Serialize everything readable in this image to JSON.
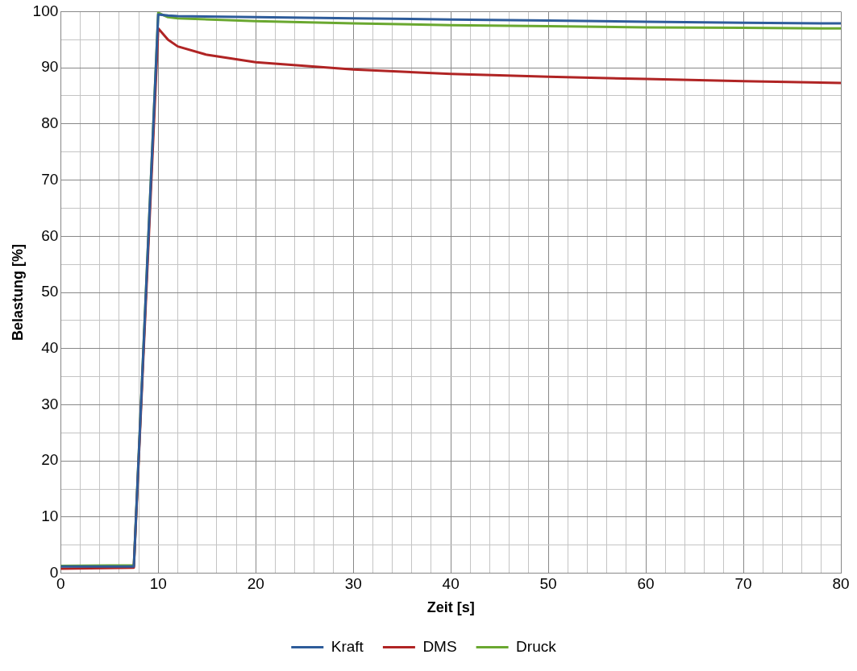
{
  "chart_data": {
    "type": "line",
    "xlabel": "Zeit [s]",
    "ylabel": "Belastung [%]",
    "xlim": [
      0,
      80
    ],
    "ylim": [
      0,
      100
    ],
    "xticks": [
      0,
      {
        "value": 2,
        "label": null
      },
      {
        "value": 4,
        "label": null
      },
      {
        "value": 6,
        "label": null
      },
      {
        "value": 8,
        "label": null
      },
      10,
      {
        "value": 12,
        "label": null
      },
      {
        "value": 14,
        "label": null
      },
      {
        "value": 16,
        "label": null
      },
      {
        "value": 18,
        "label": null
      },
      20,
      {
        "value": 22,
        "label": null
      },
      {
        "value": 24,
        "label": null
      },
      {
        "value": 26,
        "label": null
      },
      {
        "value": 28,
        "label": null
      },
      30,
      {
        "value": 32,
        "label": null
      },
      {
        "value": 34,
        "label": null
      },
      {
        "value": 36,
        "label": null
      },
      {
        "value": 38,
        "label": null
      },
      40,
      {
        "value": 42,
        "label": null
      },
      {
        "value": 44,
        "label": null
      },
      {
        "value": 46,
        "label": null
      },
      {
        "value": 48,
        "label": null
      },
      50,
      {
        "value": 52,
        "label": null
      },
      {
        "value": 54,
        "label": null
      },
      {
        "value": 56,
        "label": null
      },
      {
        "value": 58,
        "label": null
      },
      60,
      {
        "value": 62,
        "label": null
      },
      {
        "value": 64,
        "label": null
      },
      {
        "value": 66,
        "label": null
      },
      {
        "value": 68,
        "label": null
      },
      70,
      {
        "value": 72,
        "label": null
      },
      {
        "value": 74,
        "label": null
      },
      {
        "value": 76,
        "label": null
      },
      {
        "value": 78,
        "label": null
      },
      80
    ],
    "yticks": [
      0,
      {
        "value": 5,
        "label": null
      },
      10,
      {
        "value": 15,
        "label": null
      },
      20,
      {
        "value": 25,
        "label": null
      },
      30,
      {
        "value": 35,
        "label": null
      },
      40,
      {
        "value": 45,
        "label": null
      },
      50,
      {
        "value": 55,
        "label": null
      },
      60,
      {
        "value": 65,
        "label": null
      },
      70,
      {
        "value": 75,
        "label": null
      },
      80,
      {
        "value": 85,
        "label": null
      },
      90,
      {
        "value": 95,
        "label": null
      },
      100
    ],
    "grid": true,
    "legend": "bottom",
    "marker": "none",
    "line_style": "solid",
    "series": [
      {
        "name": "Kraft",
        "color": "#2e5c9a",
        "x": [
          0,
          7.5,
          10,
          11,
          12,
          20,
          30,
          40,
          50,
          60,
          70,
          80
        ],
        "values": [
          1.2,
          1.2,
          99.5,
          99.3,
          99.2,
          99,
          98.8,
          98.6,
          98.4,
          98.2,
          98,
          97.9
        ]
      },
      {
        "name": "DMS",
        "color": "#b02424",
        "x": [
          0,
          7.5,
          10,
          11,
          12,
          15,
          20,
          30,
          40,
          50,
          60,
          70,
          80
        ],
        "values": [
          0.8,
          1,
          97,
          95,
          93.8,
          92.3,
          91,
          89.7,
          88.9,
          88.4,
          88,
          87.6,
          87.3
        ]
      },
      {
        "name": "Druck",
        "color": "#6aa830",
        "x": [
          0,
          7.5,
          10,
          11,
          12,
          20,
          30,
          40,
          50,
          60,
          70,
          80
        ],
        "values": [
          1.3,
          1.4,
          99.8,
          99,
          98.8,
          98.3,
          97.9,
          97.6,
          97.4,
          97.2,
          97.1,
          97
        ]
      }
    ]
  }
}
